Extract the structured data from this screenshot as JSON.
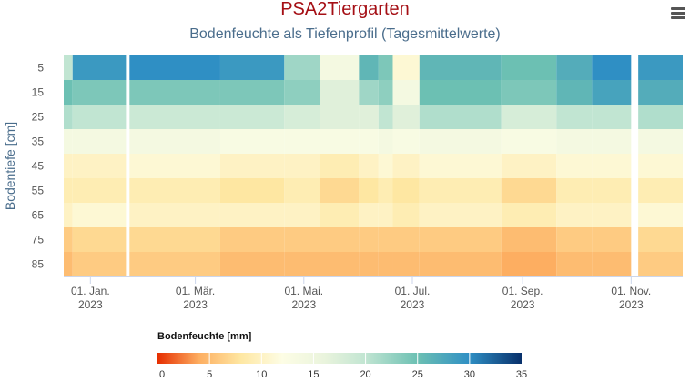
{
  "header": {
    "title": "PSA2Tiergarten",
    "subtitle": "Bodenfeuchte als Tiefenprofil (Tagesmittelwerte)"
  },
  "menu": {
    "icon": "hamburger-menu-icon"
  },
  "chart_data": {
    "type": "heatmap",
    "title": "PSA2Tiergarten",
    "subtitle": "Bodenfeuchte als Tiefenprofil (Tagesmittelwerte)",
    "ylabel": "Bodentiefe [cm]",
    "y_categories": [
      5,
      15,
      25,
      35,
      45,
      55,
      65,
      75,
      85
    ],
    "x_range": [
      "2022-12-17",
      "2023-11-30"
    ],
    "x_ticks": [
      {
        "date": "2023-01-01",
        "label": [
          "01. Jan.",
          "2023"
        ]
      },
      {
        "date": "2023-03-01",
        "label": [
          "01. Mär.",
          "2023"
        ]
      },
      {
        "date": "2023-05-01",
        "label": [
          "01. Mai.",
          "2023"
        ]
      },
      {
        "date": "2023-07-01",
        "label": [
          "01. Jul.",
          "2023"
        ]
      },
      {
        "date": "2023-09-01",
        "label": [
          "01. Sep.",
          "2023"
        ]
      },
      {
        "date": "2023-11-01",
        "label": [
          "01. Nov.",
          "2023"
        ]
      }
    ],
    "data_gaps": [
      [
        "2023-01-21",
        "2023-01-23"
      ],
      [
        "2023-11-01",
        "2023-11-05"
      ]
    ],
    "data_start": "2022-12-17",
    "data_end": "2023-11-30",
    "periods": [
      {
        "from": "2022-12-17",
        "to": "2022-12-22",
        "values": [
          20,
          25,
          21,
          14,
          10,
          9,
          10,
          6,
          5
        ]
      },
      {
        "from": "2022-12-22",
        "to": "2023-01-21",
        "values": [
          29,
          24,
          20,
          14,
          10,
          9,
          11,
          7,
          6
        ]
      },
      {
        "from": "2023-01-23",
        "to": "2023-03-15",
        "values": [
          30,
          24,
          19,
          14,
          11,
          9,
          10,
          7,
          6
        ]
      },
      {
        "from": "2023-03-15",
        "to": "2023-04-20",
        "values": [
          29,
          24,
          19,
          13,
          10,
          8,
          10,
          6,
          5
        ]
      },
      {
        "from": "2023-04-20",
        "to": "2023-05-10",
        "values": [
          22,
          23,
          18,
          13,
          10,
          9,
          10,
          6,
          5
        ]
      },
      {
        "from": "2023-05-10",
        "to": "2023-06-01",
        "values": [
          14,
          17,
          17,
          13,
          9,
          7,
          9,
          6,
          5
        ]
      },
      {
        "from": "2023-06-01",
        "to": "2023-06-12",
        "values": [
          26,
          22,
          17,
          13,
          10,
          8,
          10,
          6,
          5
        ]
      },
      {
        "from": "2023-06-12",
        "to": "2023-06-20",
        "values": [
          24,
          23,
          20,
          14,
          11,
          9,
          10,
          6,
          5
        ]
      },
      {
        "from": "2023-06-20",
        "to": "2023-07-05",
        "values": [
          11,
          14,
          17,
          13,
          10,
          8,
          9,
          6,
          5
        ]
      },
      {
        "from": "2023-07-05",
        "to": "2023-08-20",
        "values": [
          26,
          25,
          21,
          14,
          11,
          9,
          10,
          6,
          5
        ]
      },
      {
        "from": "2023-08-20",
        "to": "2023-09-20",
        "values": [
          25,
          24,
          18,
          13,
          10,
          7,
          9,
          5,
          4
        ]
      },
      {
        "from": "2023-09-20",
        "to": "2023-10-10",
        "values": [
          27,
          26,
          20,
          14,
          11,
          9,
          10,
          6,
          5
        ]
      },
      {
        "from": "2023-10-10",
        "to": "2023-11-01",
        "values": [
          30,
          28,
          20,
          14,
          11,
          9,
          10,
          6,
          5
        ]
      },
      {
        "from": "2023-11-05",
        "to": "2023-11-30",
        "values": [
          29,
          27,
          21,
          14,
          11,
          9,
          11,
          7,
          6
        ]
      }
    ],
    "colorAxis": {
      "title": "Bodenfeuchte [mm]",
      "min": 0,
      "max": 35,
      "ticks": [
        0,
        5,
        10,
        15,
        20,
        25,
        30,
        35
      ],
      "stops": [
        {
          "value": 0,
          "color": "#e62e00"
        },
        {
          "value": 4,
          "color": "#fdae61"
        },
        {
          "value": 8,
          "color": "#fee7a2"
        },
        {
          "value": 12,
          "color": "#fdfde5"
        },
        {
          "value": 16,
          "color": "#eaf4dd"
        },
        {
          "value": 20,
          "color": "#c1e5d2"
        },
        {
          "value": 25,
          "color": "#6cc0b3"
        },
        {
          "value": 30,
          "color": "#2f8fc4"
        },
        {
          "value": 35,
          "color": "#08306b"
        }
      ]
    },
    "legend": "bottom",
    "grid": false
  }
}
